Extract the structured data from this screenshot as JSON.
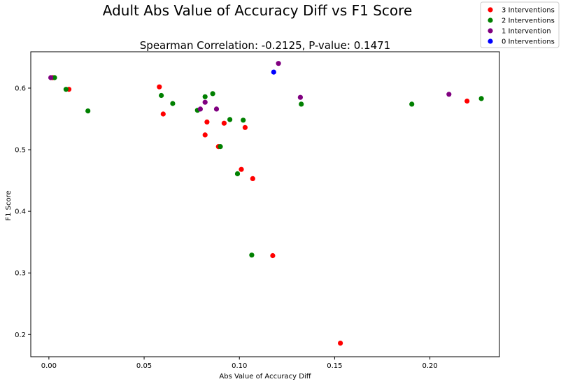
{
  "chart_data": {
    "type": "scatter",
    "title": "Adult Abs Value of Accuracy Diff vs F1 Score",
    "subtitle": "Spearman Correlation: -0.2125, P-value: 0.1471",
    "xlabel": "Abs Value of Accuracy Diff",
    "ylabel": "F1 Score",
    "xlim": [
      -0.0095,
      0.2365
    ],
    "ylim": [
      0.164,
      0.659
    ],
    "xticks": [
      0.0,
      0.05,
      0.1,
      0.15,
      0.2
    ],
    "xtick_labels": [
      "0.00",
      "0.05",
      "0.10",
      "0.15",
      "0.20"
    ],
    "yticks": [
      0.2,
      0.3,
      0.4,
      0.5,
      0.6
    ],
    "ytick_labels": [
      "0.2",
      "0.3",
      "0.4",
      "0.5",
      "0.6"
    ],
    "grid": false,
    "legend": "top-right",
    "series": [
      {
        "name": "3 Interventions",
        "color": "#ff0000",
        "points": [
          [
            0.002,
            0.617
          ],
          [
            0.0105,
            0.598
          ],
          [
            0.058,
            0.602
          ],
          [
            0.06,
            0.558
          ],
          [
            0.082,
            0.524
          ],
          [
            0.083,
            0.545
          ],
          [
            0.089,
            0.505
          ],
          [
            0.092,
            0.543
          ],
          [
            0.101,
            0.468
          ],
          [
            0.103,
            0.536
          ],
          [
            0.107,
            0.453
          ],
          [
            0.1175,
            0.328
          ],
          [
            0.153,
            0.186
          ],
          [
            0.2195,
            0.579
          ]
        ]
      },
      {
        "name": "2 Interventions",
        "color": "#008000",
        "points": [
          [
            0.003,
            0.617
          ],
          [
            0.009,
            0.598
          ],
          [
            0.0205,
            0.563
          ],
          [
            0.059,
            0.588
          ],
          [
            0.065,
            0.575
          ],
          [
            0.078,
            0.564
          ],
          [
            0.082,
            0.586
          ],
          [
            0.086,
            0.591
          ],
          [
            0.09,
            0.505
          ],
          [
            0.095,
            0.549
          ],
          [
            0.099,
            0.461
          ],
          [
            0.102,
            0.548
          ],
          [
            0.1065,
            0.329
          ],
          [
            0.1325,
            0.574
          ],
          [
            0.1905,
            0.574
          ],
          [
            0.227,
            0.583
          ]
        ]
      },
      {
        "name": "1 Intervention",
        "color": "#800080",
        "points": [
          [
            0.001,
            0.617
          ],
          [
            0.0795,
            0.566
          ],
          [
            0.082,
            0.577
          ],
          [
            0.088,
            0.566
          ],
          [
            0.1205,
            0.64
          ],
          [
            0.132,
            0.585
          ],
          [
            0.21,
            0.59
          ]
        ]
      },
      {
        "name": "0 Interventions",
        "color": "#0000ff",
        "points": [
          [
            0.118,
            0.626
          ]
        ]
      }
    ]
  }
}
